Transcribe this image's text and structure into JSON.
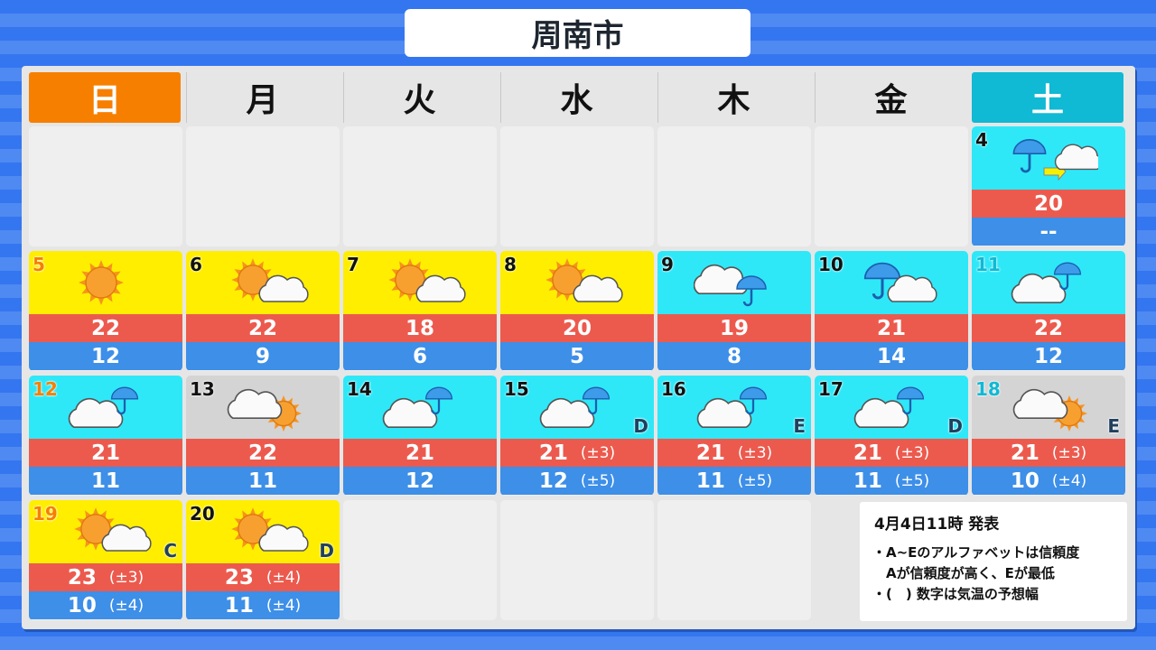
{
  "title": "周南市",
  "weekdays": [
    "日",
    "月",
    "火",
    "水",
    "木",
    "金",
    "土"
  ],
  "colors": {
    "sunny": "#ffee00",
    "rain": "#2ee8f8",
    "cloudy": "#d4d4d4",
    "high": "#ec5a4e",
    "low": "#3d8fe8",
    "sunday": "#f77f00",
    "saturday": "#10b9d4"
  },
  "days": [
    {
      "date": "4",
      "col": 6,
      "row": 0,
      "bg": "rain",
      "icon": "rain-then-cloud",
      "high": "20",
      "low": "--"
    },
    {
      "date": "5",
      "col": 0,
      "row": 1,
      "bg": "sunny",
      "icon": "sun",
      "high": "22",
      "low": "12"
    },
    {
      "date": "6",
      "col": 1,
      "row": 1,
      "bg": "sunny",
      "icon": "sun-cloud",
      "high": "22",
      "low": "9"
    },
    {
      "date": "7",
      "col": 2,
      "row": 1,
      "bg": "sunny",
      "icon": "sun-cloud",
      "high": "18",
      "low": "6"
    },
    {
      "date": "8",
      "col": 3,
      "row": 1,
      "bg": "sunny",
      "icon": "sun-cloud",
      "high": "20",
      "low": "5"
    },
    {
      "date": "9",
      "col": 4,
      "row": 1,
      "bg": "rain",
      "icon": "cloud-rain",
      "high": "19",
      "low": "8"
    },
    {
      "date": "10",
      "col": 5,
      "row": 1,
      "bg": "rain",
      "icon": "rain-cloud",
      "high": "21",
      "low": "14"
    },
    {
      "date": "11",
      "col": 6,
      "row": 1,
      "bg": "rain",
      "icon": "cloud-rain-small",
      "high": "22",
      "low": "12"
    },
    {
      "date": "12",
      "col": 0,
      "row": 2,
      "bg": "rain",
      "icon": "cloud-rain-small",
      "high": "21",
      "low": "11"
    },
    {
      "date": "13",
      "col": 1,
      "row": 2,
      "bg": "cloudy",
      "icon": "cloud-sun",
      "high": "22",
      "low": "11"
    },
    {
      "date": "14",
      "col": 2,
      "row": 2,
      "bg": "rain",
      "icon": "cloud-rain-small",
      "high": "21",
      "low": "12"
    },
    {
      "date": "15",
      "col": 3,
      "row": 2,
      "bg": "rain",
      "icon": "cloud-rain-small",
      "high": "21",
      "high_range": "(±3)",
      "low": "12",
      "low_range": "(±5)",
      "reliability": "D"
    },
    {
      "date": "16",
      "col": 4,
      "row": 2,
      "bg": "rain",
      "icon": "cloud-rain-small",
      "high": "21",
      "high_range": "(±3)",
      "low": "11",
      "low_range": "(±5)",
      "reliability": "E"
    },
    {
      "date": "17",
      "col": 5,
      "row": 2,
      "bg": "rain",
      "icon": "cloud-rain-small",
      "high": "21",
      "high_range": "(±3)",
      "low": "11",
      "low_range": "(±5)",
      "reliability": "D"
    },
    {
      "date": "18",
      "col": 6,
      "row": 2,
      "bg": "cloudy",
      "icon": "cloud-sun",
      "high": "21",
      "high_range": "(±3)",
      "low": "10",
      "low_range": "(±4)",
      "reliability": "E"
    },
    {
      "date": "19",
      "col": 0,
      "row": 3,
      "bg": "sunny",
      "icon": "sun-cloud",
      "high": "23",
      "high_range": "(±3)",
      "low": "10",
      "low_range": "(±4)",
      "reliability": "C"
    },
    {
      "date": "20",
      "col": 1,
      "row": 3,
      "bg": "sunny",
      "icon": "sun-cloud",
      "high": "23",
      "high_range": "(±4)",
      "low": "11",
      "low_range": "(±4)",
      "reliability": "D"
    }
  ],
  "note": {
    "published": "4月4日11時 発表",
    "lines": [
      "・A~Eのアルファベットは信頼度",
      "　Aが信頼度が高く、Eが最低",
      "・(　) 数字は気温の予想幅"
    ]
  }
}
